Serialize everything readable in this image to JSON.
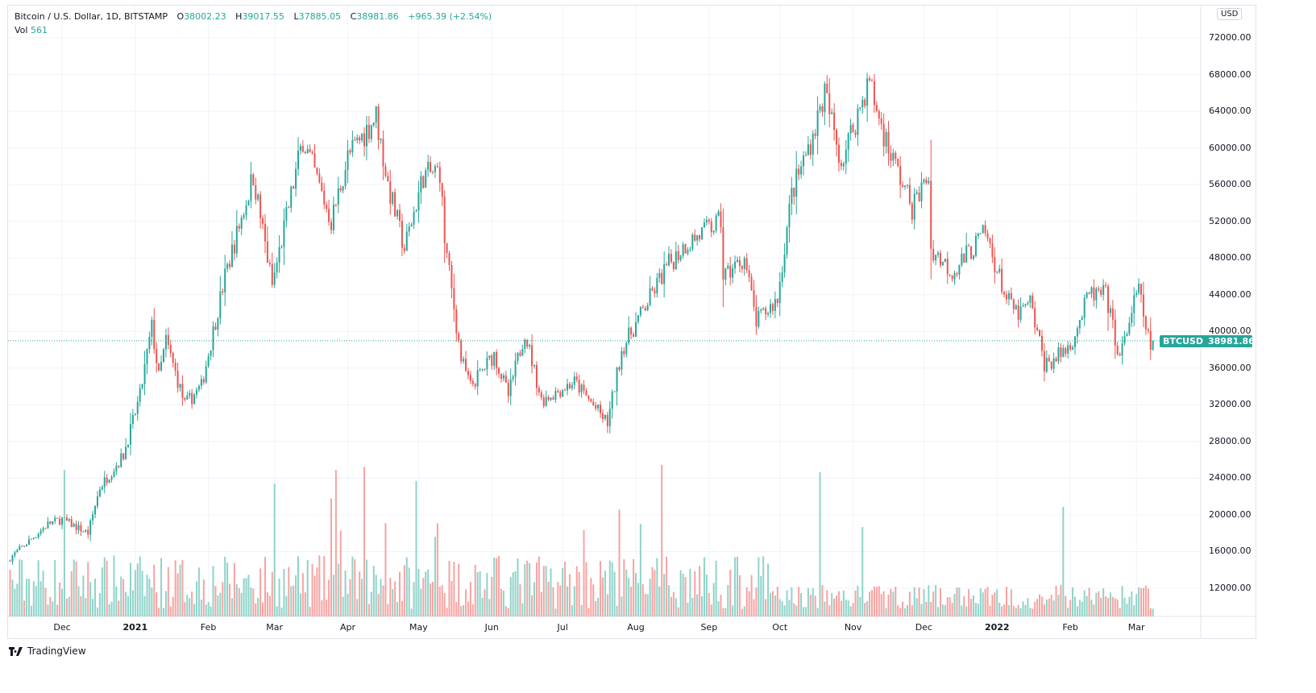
{
  "legend": {
    "title": "Bitcoin / U.S. Dollar, 1D, BITSTAMP",
    "o_label": "O",
    "open": "38002.23",
    "h_label": "H",
    "high": "39017.55",
    "l_label": "L",
    "low": "37885.05",
    "c_label": "C",
    "close": "38981.86",
    "change": "+965.39 (+2.54%)",
    "vol_label": "Vol",
    "vol": "561"
  },
  "currency_button": "USD",
  "symbol_tag": "BTCUSD",
  "price_tag": "38981.86",
  "brand": "TradingView",
  "colors": {
    "up": "#26a69a",
    "down": "#ef5350",
    "up_vol": "#8fd3c9",
    "down_vol": "#f7a3a1",
    "grid": "#f0f3fa"
  },
  "chart_data": {
    "type": "candlestick",
    "symbol": "BTCUSD",
    "interval": "1D",
    "ylim": [
      10000,
      74000
    ],
    "y_ticks": [
      "72000.00",
      "68000.00",
      "64000.00",
      "60000.00",
      "56000.00",
      "52000.00",
      "48000.00",
      "44000.00",
      "40000.00",
      "36000.00",
      "32000.00",
      "28000.00",
      "24000.00",
      "20000.00",
      "16000.00",
      "12000.00"
    ],
    "x_ticks": [
      {
        "label": "Dec",
        "date": "2020-12-01"
      },
      {
        "label": "2021",
        "date": "2021-01-01",
        "bold": true
      },
      {
        "label": "Feb",
        "date": "2021-02-01"
      },
      {
        "label": "Mar",
        "date": "2021-03-01"
      },
      {
        "label": "Apr",
        "date": "2021-04-01"
      },
      {
        "label": "May",
        "date": "2021-05-01"
      },
      {
        "label": "Jun",
        "date": "2021-06-01"
      },
      {
        "label": "Jul",
        "date": "2021-07-01"
      },
      {
        "label": "Aug",
        "date": "2021-08-01"
      },
      {
        "label": "Sep",
        "date": "2021-09-01"
      },
      {
        "label": "Oct",
        "date": "2021-10-01"
      },
      {
        "label": "Nov",
        "date": "2021-11-01"
      },
      {
        "label": "Dec",
        "date": "2021-12-01"
      },
      {
        "label": "2022",
        "date": "2022-01-01",
        "bold": true
      },
      {
        "label": "Feb",
        "date": "2022-02-01"
      },
      {
        "label": "Mar",
        "date": "2022-03-01"
      }
    ],
    "close_path": [
      [
        "2020-11-09",
        15300
      ],
      [
        "2020-11-25",
        19000
      ],
      [
        "2020-12-01",
        19500
      ],
      [
        "2020-12-12",
        18000
      ],
      [
        "2020-12-17",
        23000
      ],
      [
        "2020-12-27",
        26500
      ],
      [
        "2021-01-03",
        33000
      ],
      [
        "2021-01-08",
        40500
      ],
      [
        "2021-01-11",
        35000
      ],
      [
        "2021-01-14",
        39000
      ],
      [
        "2021-01-22",
        32000
      ],
      [
        "2021-01-29",
        34000
      ],
      [
        "2021-02-08",
        46000
      ],
      [
        "2021-02-20",
        57000
      ],
      [
        "2021-02-28",
        45000
      ],
      [
        "2021-03-13",
        61000
      ],
      [
        "2021-03-25",
        52000
      ],
      [
        "2021-04-01",
        59000
      ],
      [
        "2021-04-13",
        63500
      ],
      [
        "2021-04-18",
        56000
      ],
      [
        "2021-04-25",
        49000
      ],
      [
        "2021-05-03",
        57000
      ],
      [
        "2021-05-10",
        57500
      ],
      [
        "2021-05-12",
        50000
      ],
      [
        "2021-05-19",
        37000
      ],
      [
        "2021-05-23",
        34000
      ],
      [
        "2021-06-02",
        37500
      ],
      [
        "2021-06-08",
        33000
      ],
      [
        "2021-06-15",
        40000
      ],
      [
        "2021-06-22",
        32500
      ],
      [
        "2021-07-06",
        34500
      ],
      [
        "2021-07-20",
        30000
      ],
      [
        "2021-07-26",
        38000
      ],
      [
        "2021-08-14",
        47000
      ],
      [
        "2021-08-22",
        49500
      ],
      [
        "2021-09-06",
        52000
      ],
      [
        "2021-09-07",
        46000
      ],
      [
        "2021-09-16",
        48000
      ],
      [
        "2021-09-21",
        41000
      ],
      [
        "2021-09-30",
        43500
      ],
      [
        "2021-10-06",
        55000
      ],
      [
        "2021-10-15",
        61500
      ],
      [
        "2021-10-20",
        66000
      ],
      [
        "2021-10-27",
        58500
      ],
      [
        "2021-11-08",
        67500
      ],
      [
        "2021-11-10",
        65000
      ],
      [
        "2021-11-16",
        60000
      ],
      [
        "2021-11-26",
        53500
      ],
      [
        "2021-12-03",
        57000
      ],
      [
        "2021-12-04",
        49000
      ],
      [
        "2021-12-13",
        46500
      ],
      [
        "2021-12-27",
        50700
      ],
      [
        "2022-01-05",
        43500
      ],
      [
        "2022-01-10",
        41800
      ],
      [
        "2022-01-15",
        43100
      ],
      [
        "2022-01-21",
        36500
      ],
      [
        "2022-01-24",
        36700
      ],
      [
        "2022-02-01",
        38500
      ],
      [
        "2022-02-09",
        44000
      ],
      [
        "2022-02-16",
        44000
      ],
      [
        "2022-02-22",
        37000
      ],
      [
        "2022-02-28",
        43200
      ],
      [
        "2022-03-02",
        44400
      ],
      [
        "2022-03-07",
        38002.23
      ],
      [
        "2022-03-08",
        38981.86
      ]
    ],
    "last_candle": {
      "open": 38002.23,
      "high": 39017.55,
      "low": 37885.05,
      "close": 38981.86,
      "volume": 561
    }
  }
}
